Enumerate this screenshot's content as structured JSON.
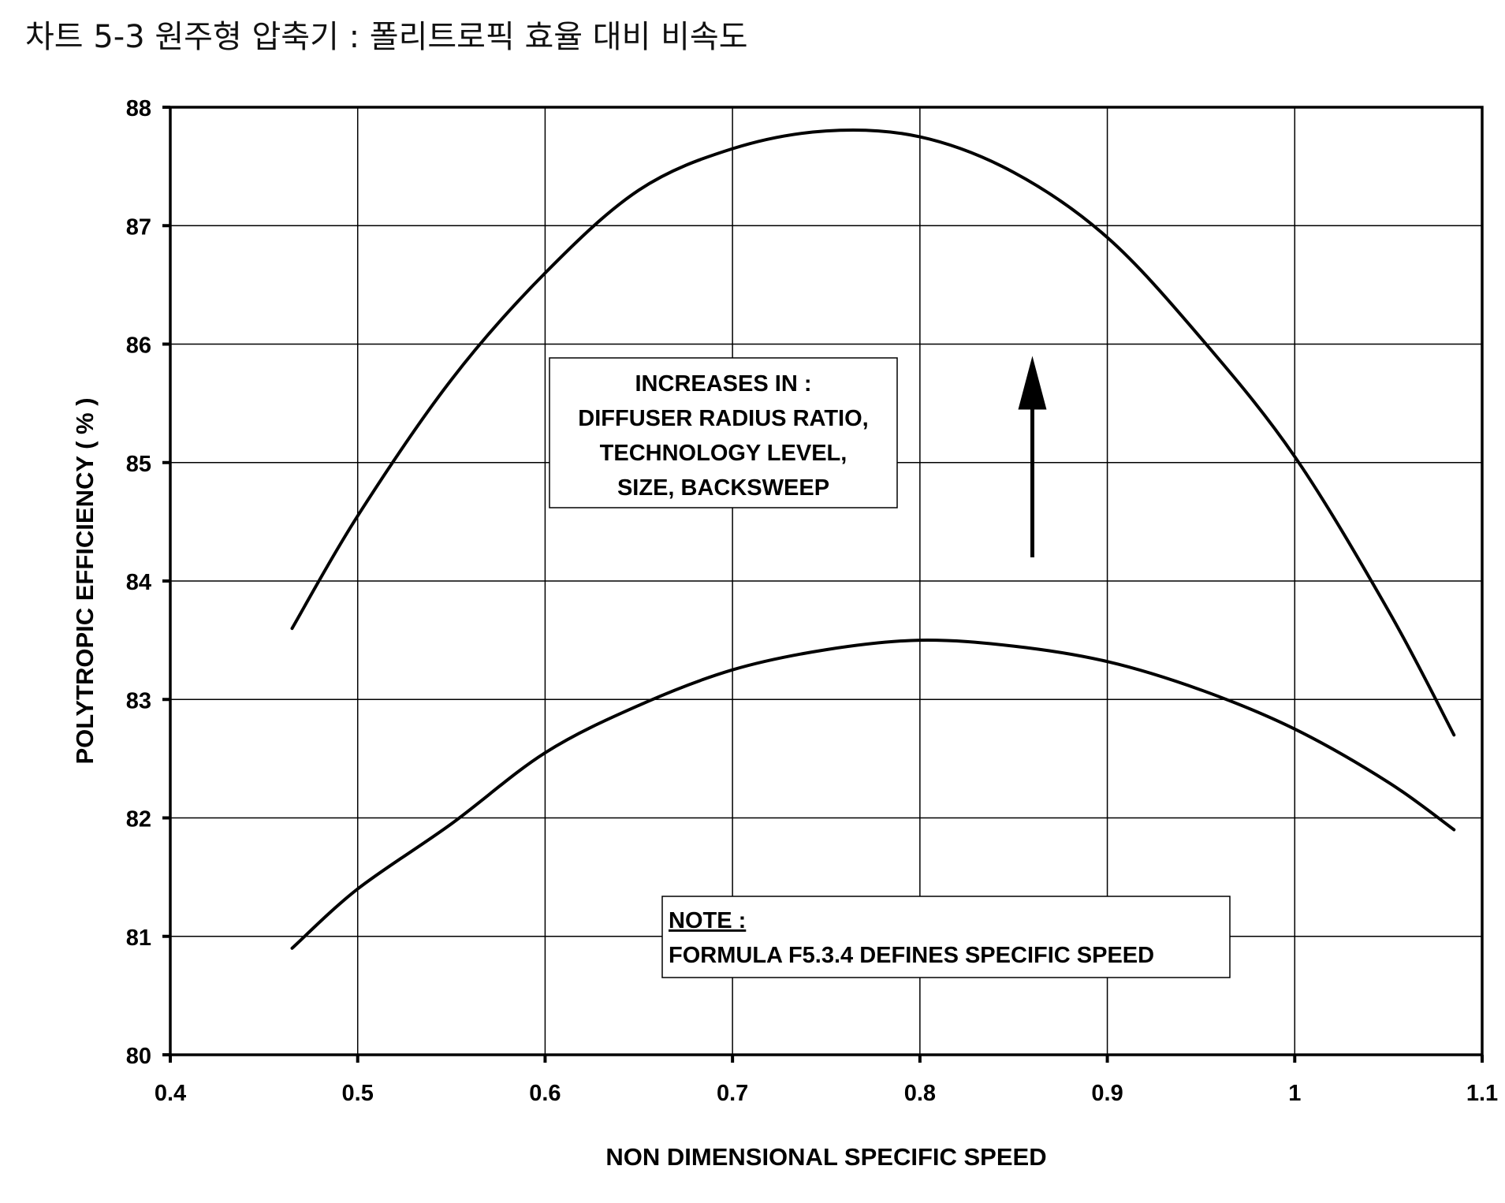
{
  "page": {
    "title": "차트 5-3 원주형 압축기 : 폴리트로픽 효율 대비 비속도"
  },
  "chart_data": {
    "type": "line",
    "xlabel": "NON DIMENSIONAL SPECIFIC SPEED",
    "ylabel": "POLYTROPIC EFFICIENCY ( % )",
    "xlim": [
      0.4,
      1.1
    ],
    "ylim": [
      80,
      88
    ],
    "x_ticks": [
      0.4,
      0.5,
      0.6,
      0.7,
      0.8,
      0.9,
      1,
      1.1
    ],
    "x_tick_labels": [
      "0.4",
      "0.5",
      "0.6",
      "0.7",
      "0.8",
      "0.9",
      "1",
      "1.1"
    ],
    "y_ticks": [
      80,
      81,
      82,
      83,
      84,
      85,
      86,
      87,
      88
    ],
    "y_tick_labels": [
      "80",
      "81",
      "82",
      "83",
      "84",
      "85",
      "86",
      "87",
      "88"
    ],
    "grid": true,
    "legend": "none",
    "line_color": "#000000",
    "series": [
      {
        "x": [
          0.465,
          0.5,
          0.55,
          0.6,
          0.65,
          0.7,
          0.75,
          0.8,
          0.85,
          0.9,
          0.95,
          1.0,
          1.05,
          1.085
        ],
        "y": [
          83.6,
          84.55,
          85.7,
          86.6,
          87.3,
          87.65,
          87.8,
          87.75,
          87.45,
          86.9,
          86.05,
          85.05,
          83.75,
          82.7
        ]
      },
      {
        "x": [
          0.465,
          0.5,
          0.55,
          0.6,
          0.65,
          0.7,
          0.75,
          0.8,
          0.85,
          0.9,
          0.95,
          1.0,
          1.05,
          1.085
        ],
        "y": [
          80.9,
          81.4,
          81.95,
          82.55,
          82.95,
          83.25,
          83.42,
          83.5,
          83.45,
          83.32,
          83.08,
          82.75,
          82.3,
          81.9
        ]
      }
    ],
    "annotations": {
      "trend_box": {
        "lines": [
          "INCREASES IN :",
          "DIFFUSER RADIUS RATIO,",
          "TECHNOLOGY LEVEL,",
          "SIZE, BACKSWEEP"
        ]
      },
      "note_box": {
        "heading": "NOTE :",
        "text": "FORMULA F5.3.4 DEFINES SPECIFIC SPEED"
      },
      "arrow": {
        "direction": "up",
        "x": 0.86,
        "y_from": 84.2,
        "y_to": 85.9
      }
    }
  }
}
